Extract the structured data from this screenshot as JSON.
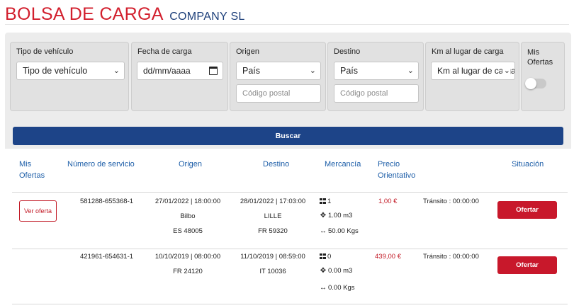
{
  "header": {
    "brand_main": "BOLSA DE CARGA",
    "brand_sub": "COMPANY SL"
  },
  "filters": {
    "vehicle": {
      "label": "Tipo de vehículo",
      "value": "Tipo de vehículo"
    },
    "date": {
      "label": "Fecha de carga",
      "value": "dd/mm/aaaa"
    },
    "origin": {
      "label": "Origen",
      "country": "País",
      "postal_placeholder": "Código postal"
    },
    "destination": {
      "label": "Destino",
      "country": "País",
      "postal_placeholder": "Código postal"
    },
    "km": {
      "label": "Km al lugar de carga",
      "value": "Km al lugar de carga"
    },
    "my_offers": {
      "label_line1": "Mis",
      "label_line2": "Ofertas",
      "enabled": false
    }
  },
  "search_label": "Buscar",
  "table": {
    "headers": {
      "mis_ofertas_1": "Mis",
      "mis_ofertas_2": "Ofertas",
      "servicio": "Número de servicio",
      "origen": "Origen",
      "destino": "Destino",
      "mercancia": "Mercancía",
      "precio_1": "Precio",
      "precio_2": "Orientativo",
      "situacion": "Situación"
    },
    "rows": [
      {
        "ver_oferta": "Ver oferta",
        "service": "581288-655368-1",
        "origin_datetime": "27/01/2022 | 18:00:00",
        "origin_city": "Bilbo",
        "origin_postal": "ES 48005",
        "dest_datetime": "28/01/2022 | 17:03:00",
        "dest_city": "LILLE",
        "dest_postal": "FR 59320",
        "pallets": "1",
        "volume": "1.00 m3",
        "weight": "50.00 Kgs",
        "price": "1,00 €",
        "status": "Tránsito : 00:00:00",
        "action": "Ofertar"
      },
      {
        "service": "421961-654631-1",
        "origin_datetime": "10/10/2019 | 08:00:00",
        "origin_postal": "FR 24120",
        "dest_datetime": "11/10/2019 | 08:59:00",
        "dest_postal": "IT 10036",
        "pallets": "0",
        "volume": "0.00 m3",
        "weight": "0.00 Kgs",
        "price": "439,00 €",
        "status": "Tránsito : 00:00:00",
        "action": "Ofertar"
      }
    ]
  },
  "colors": {
    "brand_red": "#d21f2d",
    "brand_blue": "#1d3f7a",
    "header_blue": "#1d5ea8",
    "search_blue": "#1d4488",
    "action_red": "#c8182b"
  }
}
